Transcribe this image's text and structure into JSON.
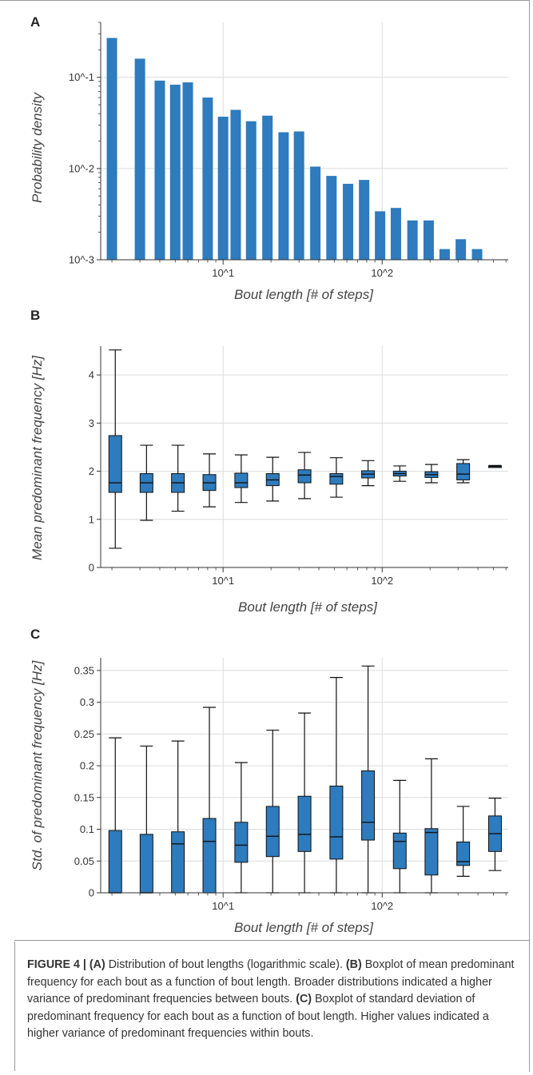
{
  "figure": {
    "caption": {
      "label": "FIGURE 4 | ",
      "a_tag": "(A)",
      "a_text": " Distribution of bout lengths (logarithmic scale). ",
      "b_tag": "(B)",
      "b_text": " Boxplot of mean predominant frequency for each bout as a function of bout length. Broader distributions indicated a higher variance of predominant frequencies between bouts. ",
      "c_tag": "(C)",
      "c_text": " Boxplot of standard deviation of predominant frequency for each bout as a function of bout length. Higher values indicated a higher variance of predominant frequencies within bouts."
    }
  },
  "chart_data": [
    {
      "panel": "A",
      "type": "bar",
      "xlabel": "Bout length [# of steps]",
      "ylabel": "Probability density",
      "xscale": "log",
      "yscale": "log",
      "xlim": [
        1.7,
        620
      ],
      "ylim": [
        0.001,
        0.4
      ],
      "x_ticks": [
        {
          "value": 10,
          "label": "10^1"
        },
        {
          "value": 100,
          "label": "10^2"
        }
      ],
      "y_ticks": [
        {
          "value": 0.001,
          "label": "10^-3"
        },
        {
          "value": 0.01,
          "label": "10^-2"
        },
        {
          "value": 0.1,
          "label": "10^-1"
        }
      ],
      "grid": true,
      "color": "#2e7bbd",
      "x": [
        2,
        3,
        4,
        5,
        6,
        8,
        10,
        12,
        15,
        19,
        24,
        30,
        38,
        48,
        61,
        77,
        97,
        122,
        155,
        196,
        247,
        312,
        395,
        500
      ],
      "values": [
        0.27,
        0.16,
        0.092,
        0.083,
        0.088,
        0.06,
        0.037,
        0.044,
        0.033,
        0.038,
        0.025,
        0.0255,
        0.0105,
        0.0083,
        0.0068,
        0.0075,
        0.0034,
        0.0037,
        0.0027,
        0.0027,
        0.00131,
        0.00168,
        0.00131,
        0.0
      ]
    },
    {
      "panel": "B",
      "type": "boxplot",
      "xlabel": "Bout length [# of steps]",
      "ylabel": "Mean predominant frequency [Hz]",
      "xscale": "log",
      "xlim": [
        1.7,
        620
      ],
      "ylim": [
        0,
        4.6
      ],
      "x_ticks": [
        {
          "value": 10,
          "label": "10^1"
        },
        {
          "value": 100,
          "label": "10^2"
        }
      ],
      "y_ticks": [
        {
          "value": 0,
          "label": "0"
        },
        {
          "value": 1,
          "label": "1"
        },
        {
          "value": 2,
          "label": "2"
        },
        {
          "value": 3,
          "label": "3"
        },
        {
          "value": 4,
          "label": "4"
        }
      ],
      "grid": true,
      "color": "#2e7bbd",
      "boxes": [
        {
          "x": 2.1,
          "whislo": 0.4,
          "q1": 1.56,
          "med": 1.76,
          "q3": 2.74,
          "whishi": 4.52
        },
        {
          "x": 3.3,
          "whislo": 0.98,
          "q1": 1.56,
          "med": 1.76,
          "q3": 1.95,
          "whishi": 2.54
        },
        {
          "x": 5.2,
          "whislo": 1.17,
          "q1": 1.56,
          "med": 1.76,
          "q3": 1.95,
          "whishi": 2.54
        },
        {
          "x": 8.2,
          "whislo": 1.26,
          "q1": 1.6,
          "med": 1.76,
          "q3": 1.93,
          "whishi": 2.36
        },
        {
          "x": 13,
          "whislo": 1.35,
          "q1": 1.66,
          "med": 1.76,
          "q3": 1.96,
          "whishi": 2.34
        },
        {
          "x": 20.5,
          "whislo": 1.38,
          "q1": 1.7,
          "med": 1.82,
          "q3": 1.95,
          "whishi": 2.29
        },
        {
          "x": 32.5,
          "whislo": 1.43,
          "q1": 1.76,
          "med": 1.92,
          "q3": 2.03,
          "whishi": 2.39
        },
        {
          "x": 51.5,
          "whislo": 1.46,
          "q1": 1.73,
          "med": 1.89,
          "q3": 1.95,
          "whishi": 2.28
        },
        {
          "x": 81.5,
          "whislo": 1.7,
          "q1": 1.86,
          "med": 1.94,
          "q3": 2.01,
          "whishi": 2.22
        },
        {
          "x": 129,
          "whislo": 1.79,
          "q1": 1.9,
          "med": 1.95,
          "q3": 2.0,
          "whishi": 2.11
        },
        {
          "x": 204,
          "whislo": 1.76,
          "q1": 1.87,
          "med": 1.93,
          "q3": 1.99,
          "whishi": 2.14
        },
        {
          "x": 323,
          "whislo": 1.76,
          "q1": 1.82,
          "med": 1.94,
          "q3": 2.16,
          "whishi": 2.24
        },
        {
          "x": 512,
          "whislo": 2.08,
          "q1": 2.09,
          "med": 2.1,
          "q3": 2.11,
          "whishi": 2.12
        }
      ]
    },
    {
      "panel": "C",
      "type": "boxplot",
      "xlabel": "Bout length [# of steps]",
      "ylabel": "Std. of predominant frequency [Hz]",
      "xscale": "log",
      "xlim": [
        1.7,
        620
      ],
      "ylim": [
        0,
        0.37
      ],
      "x_ticks": [
        {
          "value": 10,
          "label": "10^1"
        },
        {
          "value": 100,
          "label": "10^2"
        }
      ],
      "y_ticks": [
        {
          "value": 0,
          "label": "0"
        },
        {
          "value": 0.05,
          "label": "0.05"
        },
        {
          "value": 0.1,
          "label": "0.1"
        },
        {
          "value": 0.15,
          "label": "0.15"
        },
        {
          "value": 0.2,
          "label": "0.2"
        },
        {
          "value": 0.25,
          "label": "0.25"
        },
        {
          "value": 0.3,
          "label": "0.3"
        },
        {
          "value": 0.35,
          "label": "0.35"
        }
      ],
      "grid": true,
      "color": "#2e7bbd",
      "boxes": [
        {
          "x": 2.1,
          "whislo": 0.0,
          "q1": 0.0,
          "med": 0.0,
          "q3": 0.098,
          "whishi": 0.244
        },
        {
          "x": 3.3,
          "whislo": 0.0,
          "q1": 0.0,
          "med": 0.0,
          "q3": 0.092,
          "whishi": 0.231
        },
        {
          "x": 5.2,
          "whislo": 0.0,
          "q1": 0.0,
          "med": 0.077,
          "q3": 0.096,
          "whishi": 0.239
        },
        {
          "x": 8.2,
          "whislo": 0.0,
          "q1": 0.0,
          "med": 0.081,
          "q3": 0.117,
          "whishi": 0.292
        },
        {
          "x": 13,
          "whislo": 0.0,
          "q1": 0.048,
          "med": 0.075,
          "q3": 0.111,
          "whishi": 0.205
        },
        {
          "x": 20.5,
          "whislo": 0.0,
          "q1": 0.057,
          "med": 0.089,
          "q3": 0.136,
          "whishi": 0.256
        },
        {
          "x": 32.5,
          "whislo": 0.0,
          "q1": 0.065,
          "med": 0.092,
          "q3": 0.152,
          "whishi": 0.283
        },
        {
          "x": 51.5,
          "whislo": 0.0,
          "q1": 0.053,
          "med": 0.088,
          "q3": 0.168,
          "whishi": 0.339
        },
        {
          "x": 81.5,
          "whislo": 0.0,
          "q1": 0.083,
          "med": 0.111,
          "q3": 0.192,
          "whishi": 0.357
        },
        {
          "x": 129,
          "whislo": 0.0,
          "q1": 0.038,
          "med": 0.081,
          "q3": 0.094,
          "whishi": 0.177
        },
        {
          "x": 204,
          "whislo": 0.0,
          "q1": 0.028,
          "med": 0.095,
          "q3": 0.101,
          "whishi": 0.211
        },
        {
          "x": 323,
          "whislo": 0.026,
          "q1": 0.043,
          "med": 0.049,
          "q3": 0.08,
          "whishi": 0.136
        },
        {
          "x": 512,
          "whislo": 0.035,
          "q1": 0.065,
          "med": 0.093,
          "q3": 0.121,
          "whishi": 0.149
        }
      ]
    }
  ]
}
